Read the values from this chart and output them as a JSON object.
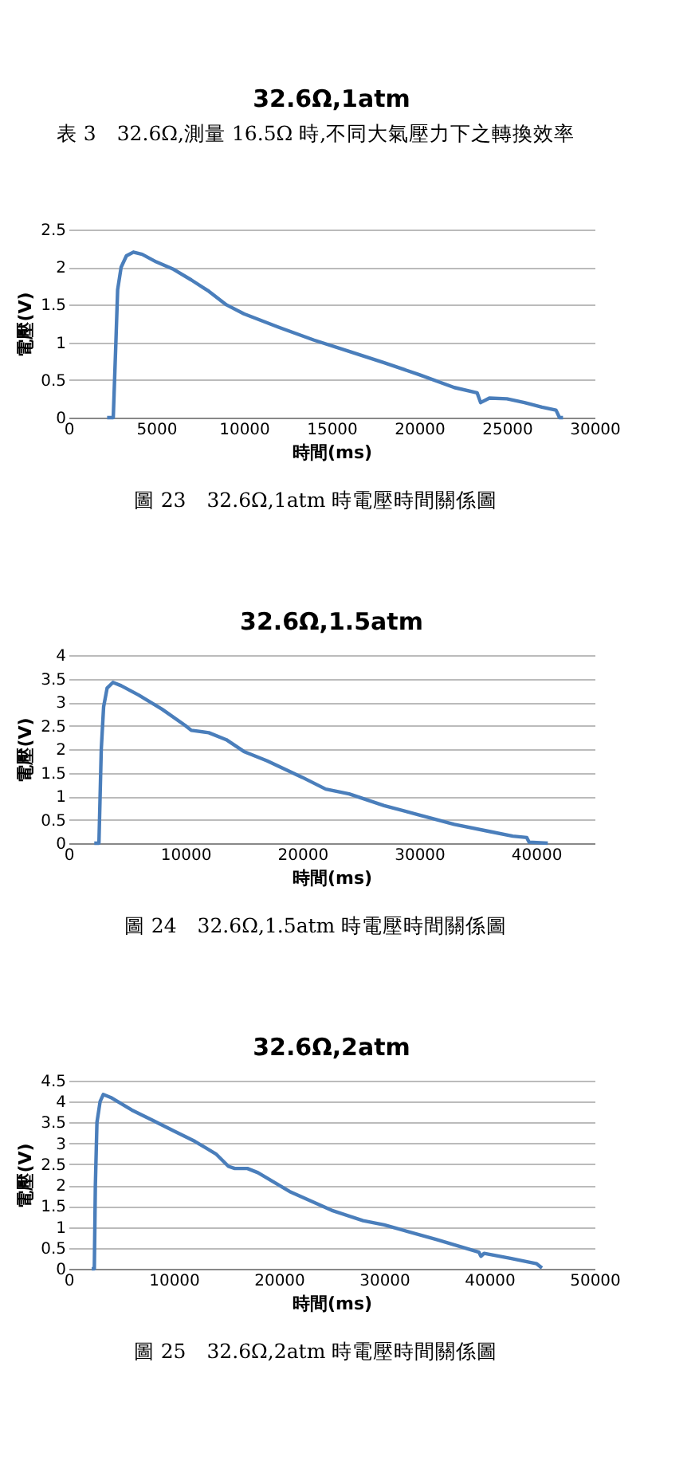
{
  "chart_data": [
    {
      "type": "line",
      "title": "32.6Ω,1atm",
      "xlabel": "時間(ms)",
      "ylabel": "電壓(V)",
      "annotations": [
        "表 3　32.6Ω,測量 16.5Ω 時,不同大氣壓力下之轉換效率",
        "圖 23　32.6Ω,1atm 時電壓時間關係圖"
      ],
      "x": [
        2200,
        2550,
        2700,
        2800,
        3000,
        3300,
        3700,
        4200,
        5000,
        6000,
        7000,
        8000,
        9000,
        10000,
        12000,
        14000,
        16000,
        18000,
        20000,
        22000,
        23300,
        23500,
        24000,
        25000,
        26000,
        27000,
        27800,
        28000,
        28200
      ],
      "series": [
        {
          "color": "#4a7ebb",
          "values": [
            0,
            0,
            1.0,
            1.7,
            2.0,
            2.15,
            2.2,
            2.17,
            2.07,
            1.97,
            1.83,
            1.68,
            1.5,
            1.38,
            1.2,
            1.03,
            0.88,
            0.73,
            0.57,
            0.4,
            0.33,
            0.2,
            0.26,
            0.25,
            0.2,
            0.14,
            0.1,
            0,
            0
          ]
        }
      ],
      "xlim": [
        0,
        30000
      ],
      "xticks": [
        0,
        5000,
        10000,
        15000,
        20000,
        25000,
        30000
      ],
      "ylim": [
        0,
        2.5
      ],
      "yticks": [
        0,
        0.5,
        1,
        1.5,
        2,
        2.5
      ],
      "grid": "y",
      "marker": "none",
      "line_style": "solid"
    },
    {
      "type": "line",
      "title": "32.6Ω,1.5atm",
      "xlabel": "時間(ms)",
      "ylabel": "電壓(V)",
      "annotations": [
        "圖 24　32.6Ω,1.5atm 時電壓時間關係圖"
      ],
      "x": [
        2200,
        2600,
        2800,
        3000,
        3300,
        3800,
        4500,
        6000,
        8000,
        10000,
        10500,
        12000,
        13500,
        15000,
        17000,
        20000,
        22000,
        24000,
        27000,
        30000,
        33000,
        36000,
        38000,
        39200,
        39400,
        41000
      ],
      "series": [
        {
          "color": "#4a7ebb",
          "values": [
            0,
            0,
            2.0,
            2.9,
            3.3,
            3.42,
            3.35,
            3.15,
            2.85,
            2.5,
            2.4,
            2.35,
            2.2,
            1.95,
            1.75,
            1.4,
            1.15,
            1.05,
            0.8,
            0.6,
            0.4,
            0.25,
            0.15,
            0.12,
            0.02,
            0
          ]
        }
      ],
      "xlim": [
        0,
        45000
      ],
      "xticks": [
        0,
        10000,
        20000,
        30000,
        40000
      ],
      "ylim": [
        0,
        4
      ],
      "yticks": [
        0,
        0.5,
        1,
        1.5,
        2,
        2.5,
        3,
        3.5,
        4
      ],
      "grid": "y",
      "marker": "none",
      "line_style": "solid"
    },
    {
      "type": "line",
      "title": "32.6Ω,2atm",
      "xlabel": "時間(ms)",
      "ylabel": "電壓(V)",
      "annotations": [
        "圖 25　32.6Ω,2atm 時電壓時間關係圖"
      ],
      "x": [
        2200,
        2450,
        2550,
        2700,
        3000,
        3300,
        4000,
        6000,
        8000,
        10000,
        12000,
        14000,
        15200,
        15800,
        17000,
        18000,
        21000,
        25000,
        28000,
        30000,
        35000,
        39000,
        39200,
        39500,
        42000,
        44500,
        45000
      ],
      "series": [
        {
          "color": "#4a7ebb",
          "values": [
            0,
            0,
            2.0,
            3.5,
            4.0,
            4.17,
            4.1,
            3.8,
            3.55,
            3.3,
            3.05,
            2.75,
            2.45,
            2.4,
            2.4,
            2.3,
            1.85,
            1.4,
            1.15,
            1.05,
            0.7,
            0.4,
            0.3,
            0.37,
            0.25,
            0.12,
            0.02
          ]
        }
      ],
      "xlim": [
        0,
        50000
      ],
      "xticks": [
        0,
        10000,
        20000,
        30000,
        40000,
        50000
      ],
      "ylim": [
        0,
        4.5
      ],
      "yticks": [
        0,
        0.5,
        1,
        1.5,
        2,
        2.5,
        3,
        3.5,
        4,
        4.5
      ],
      "grid": "y",
      "marker": "none",
      "line_style": "solid"
    }
  ]
}
